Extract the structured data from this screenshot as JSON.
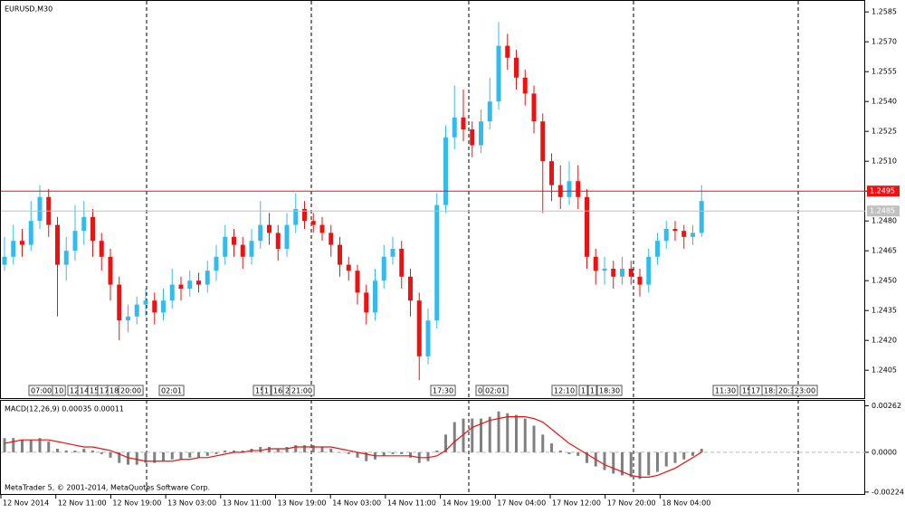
{
  "chart_data": [
    {
      "type": "candlestick",
      "title": "EURUSD,M30",
      "up_color": "#33bbee",
      "down_color": "#ee1111",
      "candles": [
        [
          1.2458,
          1.2472,
          1.2455,
          1.2462
        ],
        [
          1.2462,
          1.2478,
          1.2458,
          1.247
        ],
        [
          1.247,
          1.2476,
          1.2462,
          1.2468
        ],
        [
          1.2468,
          1.249,
          1.2465,
          1.248
        ],
        [
          1.248,
          1.2498,
          1.2476,
          1.2492
        ],
        [
          1.2492,
          1.2496,
          1.2472,
          1.2478
        ],
        [
          1.2478,
          1.2482,
          1.2432,
          1.2458
        ],
        [
          1.2458,
          1.2472,
          1.245,
          1.2465
        ],
        [
          1.2465,
          1.2488,
          1.246,
          1.2475
        ],
        [
          1.2475,
          1.249,
          1.2468,
          1.2482
        ],
        [
          1.2482,
          1.2486,
          1.2462,
          1.247
        ],
        [
          1.247,
          1.2474,
          1.2455,
          1.2462
        ],
        [
          1.2462,
          1.2466,
          1.244,
          1.2448
        ],
        [
          1.2448,
          1.2452,
          1.242,
          1.243
        ],
        [
          1.243,
          1.2438,
          1.2424,
          1.2432
        ],
        [
          1.2432,
          1.2442,
          1.2428,
          1.2438
        ],
        [
          1.2438,
          1.2446,
          1.2432,
          1.244
        ],
        [
          1.244,
          1.2444,
          1.2428,
          1.2434
        ],
        [
          1.2434,
          1.2446,
          1.243,
          1.244
        ],
        [
          1.244,
          1.2456,
          1.2436,
          1.2448
        ],
        [
          1.2448,
          1.2452,
          1.244,
          1.2446
        ],
        [
          1.2446,
          1.2455,
          1.2442,
          1.245
        ],
        [
          1.245,
          1.2454,
          1.2444,
          1.2448
        ],
        [
          1.2448,
          1.246,
          1.2444,
          1.2455
        ],
        [
          1.2455,
          1.2468,
          1.245,
          1.2462
        ],
        [
          1.2462,
          1.2478,
          1.2458,
          1.2472
        ],
        [
          1.2472,
          1.2476,
          1.2462,
          1.2468
        ],
        [
          1.2468,
          1.2472,
          1.2456,
          1.2462
        ],
        [
          1.2462,
          1.2476,
          1.2458,
          1.247
        ],
        [
          1.247,
          1.249,
          1.2466,
          1.2478
        ],
        [
          1.2478,
          1.2484,
          1.2468,
          1.2474
        ],
        [
          1.2474,
          1.2478,
          1.246,
          1.2466
        ],
        [
          1.2466,
          1.2484,
          1.2462,
          1.2478
        ],
        [
          1.2478,
          1.2494,
          1.2474,
          1.2486
        ],
        [
          1.2486,
          1.249,
          1.2476,
          1.248
        ],
        [
          1.248,
          1.2484,
          1.2474,
          1.2478
        ],
        [
          1.2478,
          1.2482,
          1.247,
          1.2474
        ],
        [
          1.2474,
          1.2478,
          1.2462,
          1.2468
        ],
        [
          1.2468,
          1.2472,
          1.2452,
          1.2458
        ],
        [
          1.2458,
          1.2462,
          1.245,
          1.2455
        ],
        [
          1.2455,
          1.2458,
          1.2438,
          1.2444
        ],
        [
          1.2444,
          1.2448,
          1.2428,
          1.2434
        ],
        [
          1.2434,
          1.2456,
          1.243,
          1.245
        ],
        [
          1.245,
          1.2468,
          1.2446,
          1.2462
        ],
        [
          1.2462,
          1.2472,
          1.2458,
          1.2466
        ],
        [
          1.2466,
          1.247,
          1.2446,
          1.2452
        ],
        [
          1.2452,
          1.2456,
          1.2432,
          1.244
        ],
        [
          1.244,
          1.2444,
          1.24,
          1.2412
        ],
        [
          1.2412,
          1.2436,
          1.2408,
          1.243
        ],
        [
          1.243,
          1.2494,
          1.2426,
          1.2488
        ],
        [
          1.2488,
          1.2528,
          1.2484,
          1.2522
        ],
        [
          1.2522,
          1.2548,
          1.2516,
          1.2532
        ],
        [
          1.2532,
          1.2546,
          1.252,
          1.2526
        ],
        [
          1.2526,
          1.253,
          1.2512,
          1.2518
        ],
        [
          1.2518,
          1.2536,
          1.2514,
          1.253
        ],
        [
          1.253,
          1.2552,
          1.2526,
          1.254
        ],
        [
          1.254,
          1.258,
          1.2536,
          1.2568
        ],
        [
          1.2568,
          1.2574,
          1.2556,
          1.2562
        ],
        [
          1.2562,
          1.2566,
          1.2546,
          1.2552
        ],
        [
          1.2552,
          1.2556,
          1.2538,
          1.2544
        ],
        [
          1.2544,
          1.2548,
          1.2524,
          1.253
        ],
        [
          1.253,
          1.2534,
          1.2484,
          1.251
        ],
        [
          1.251,
          1.2514,
          1.249,
          1.2498
        ],
        [
          1.2498,
          1.2508,
          1.2486,
          1.2492
        ],
        [
          1.2492,
          1.251,
          1.2488,
          1.25
        ],
        [
          1.25,
          1.2508,
          1.2486,
          1.2492
        ],
        [
          1.2492,
          1.2496,
          1.2456,
          1.2462
        ],
        [
          1.2462,
          1.2466,
          1.2448,
          1.2455
        ],
        [
          1.2455,
          1.2462,
          1.2448,
          1.2456
        ],
        [
          1.2456,
          1.246,
          1.2446,
          1.2452
        ],
        [
          1.2452,
          1.2462,
          1.2448,
          1.2456
        ],
        [
          1.2456,
          1.246,
          1.2448,
          1.2452
        ],
        [
          1.2452,
          1.2456,
          1.2442,
          1.2448
        ],
        [
          1.2448,
          1.2466,
          1.2444,
          1.2462
        ],
        [
          1.2462,
          1.2474,
          1.2458,
          1.247
        ],
        [
          1.247,
          1.248,
          1.2466,
          1.2476
        ],
        [
          1.2476,
          1.248,
          1.247,
          1.2475
        ],
        [
          1.2475,
          1.2478,
          1.2466,
          1.2472
        ],
        [
          1.2472,
          1.2478,
          1.2468,
          1.2474
        ],
        [
          1.2474,
          1.2498,
          1.2472,
          1.249
        ]
      ],
      "ylim": [
        1.2391,
        1.2591
      ],
      "yticks": [
        1.2585,
        {
          "value": 1.257,
          "label": "1.2570"
        },
        1.2555,
        {
          "value": 1.254,
          "label": "1.2540"
        },
        1.2525,
        {
          "value": 1.251,
          "label": "1.2510"
        },
        1.2495,
        {
          "value": 1.248,
          "label": "1.2480"
        },
        1.2465,
        {
          "value": 1.245,
          "label": "1.2450"
        },
        1.2435,
        {
          "value": 1.242,
          "label": "1.2420"
        },
        1.2405
      ],
      "levels": [
        {
          "value": 1.2495,
          "color": "#ee1111"
        },
        {
          "value": 1.2485,
          "color": "#c0c0c0"
        }
      ],
      "events": [
        "07:00",
        "10",
        "12",
        "14",
        "15",
        "17",
        "18",
        "20:00",
        "02:01",
        "15",
        "1",
        "16",
        "2",
        "21:00",
        "17:30",
        "0",
        "02:01",
        "12:10",
        "1",
        "1",
        "18:30",
        "11:30",
        "15",
        "17",
        "18:",
        "20:3",
        "23:00"
      ],
      "xticks": [
        "12 Nov 2014",
        "12 Nov 11:00",
        "12 Nov 19:00",
        "13 Nov 03:00",
        "13 Nov 11:00",
        "13 Nov 19:00",
        "14 Nov 03:00",
        "14 Nov 11:00",
        "14 Nov 19:00",
        "17 Nov 04:00",
        "17 Nov 12:00",
        "17 Nov 20:00",
        "18 Nov 04:00"
      ]
    },
    {
      "type": "macd",
      "title": "MACD(12,26,9) 0.00035 0.00011",
      "note": "MetaTrader 5, © 2001-2014, MetaQuotes Software Corp.",
      "series": [
        {
          "name": "MACD",
          "color": "#808080",
          "values": [
            0.0008,
            0.0008,
            0.0007,
            0.0007,
            0.0008,
            0.0006,
            0.0002,
            0.0001,
            0.0001,
            0.0002,
            0.0001,
            -0.0001,
            -0.0003,
            -0.0006,
            -0.0007,
            -0.0007,
            -0.0006,
            -0.0006,
            -0.0005,
            -0.0004,
            -0.0004,
            -0.0003,
            -0.0003,
            -0.0002,
            -0.0001,
            0.0001,
            0.0001,
            0.0001,
            0.0002,
            0.0003,
            0.0003,
            0.0002,
            0.0003,
            0.0004,
            0.0004,
            0.0004,
            0.0003,
            0.0002,
            0,
            -0.0001,
            -0.0003,
            -0.0005,
            -0.0004,
            -0.0002,
            -0.0001,
            -0.0001,
            -0.0003,
            -0.0006,
            -0.0005,
            0.0001,
            0.001,
            0.0017,
            0.0019,
            0.0019,
            0.0019,
            0.002,
            0.0023,
            0.0022,
            0.0021,
            0.0019,
            0.0015,
            0.001,
            0.0005,
            0.0001,
            -0.0001,
            -0.0002,
            -0.0006,
            -0.0008,
            -0.001,
            -0.0012,
            -0.0013,
            -0.0014,
            -0.0015,
            -0.0013,
            -0.0011,
            -0.0008,
            -0.0006,
            -0.0004,
            -0.0002,
            0.0002
          ]
        },
        {
          "name": "Signal",
          "color": "#ee1111",
          "values": [
            0.0005,
            0.0006,
            0.0007,
            0.0007,
            0.0007,
            0.0007,
            0.0006,
            0.0005,
            0.0004,
            0.0003,
            0.0003,
            0.0002,
            0.0001,
            -0.0001,
            -0.0003,
            -0.0004,
            -0.0005,
            -0.0005,
            -0.0005,
            -0.0005,
            -0.0004,
            -0.0004,
            -0.0003,
            -0.0003,
            -0.0002,
            -0.0001,
            0,
            0,
            0.0001,
            0.0001,
            0.0002,
            0.0002,
            0.0002,
            0.0003,
            0.0003,
            0.0003,
            0.0003,
            0.0003,
            0.0002,
            0.0001,
            0,
            -0.0001,
            -0.0002,
            -0.0002,
            -0.0002,
            -0.0002,
            -0.0002,
            -0.0003,
            -0.0003,
            -0.0002,
            0.0001,
            0.0006,
            0.001,
            0.0014,
            0.0016,
            0.0018,
            0.0019,
            0.002,
            0.002,
            0.002,
            0.0019,
            0.0017,
            0.0013,
            0.0009,
            0.0005,
            0.0002,
            -0.0001,
            -0.0004,
            -0.0007,
            -0.0009,
            -0.0011,
            -0.0013,
            -0.0014,
            -0.0014,
            -0.0013,
            -0.0011,
            -0.0009,
            -0.0006,
            -0.0003,
            0
          ]
        }
      ],
      "ylim": [
        -0.0024,
        0.0029
      ],
      "yticks": [
        0.00262,
        {
          "value": 0,
          "label": "0.0000"
        },
        -0.00224
      ]
    }
  ]
}
